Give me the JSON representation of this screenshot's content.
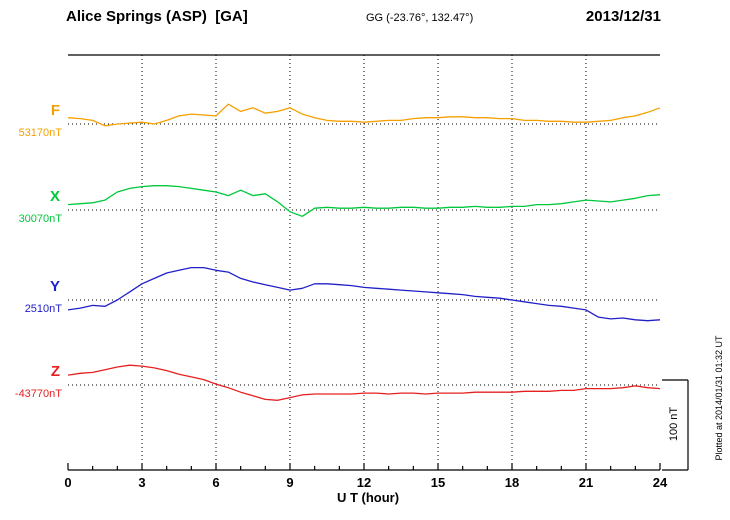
{
  "header": {
    "station": "Alice Springs (ASP)  [GA]",
    "coords": "GG (-23.76°, 132.47°)",
    "date": "2013/12/31"
  },
  "chart_data": {
    "type": "line",
    "title": "Alice Springs (ASP)  [GA]",
    "subtitle": "GG (-23.76°, 132.47°)",
    "date": "2013/12/31",
    "xlabel": "U T (hour)",
    "xlim": [
      0,
      24
    ],
    "xticks": [
      0,
      3,
      6,
      9,
      12,
      15,
      18,
      21,
      24
    ],
    "x_step_hours": 0.5,
    "grid": "dotted vertical at 3h intervals, dotted horizontal at each series baseline",
    "legend_position": "left margin, one colored label per trace",
    "scale_bar": {
      "label": "100 nT",
      "nT": 100
    },
    "plotted_at": "Plotted at 2014/01/31 01:32 UT",
    "series": [
      {
        "name": "F",
        "baseline_label": "53170nT",
        "baseline_nT": 53170,
        "color": "#F5A000",
        "unit": "nT",
        "values_offset_nT": [
          7,
          6,
          4,
          -2,
          0,
          1,
          2,
          0,
          4,
          9,
          11,
          10,
          9,
          22,
          14,
          18,
          12,
          14,
          18,
          11,
          7,
          4,
          3,
          3,
          2,
          3,
          4,
          4,
          6,
          7,
          7,
          8,
          8,
          7,
          7,
          6,
          6,
          4,
          4,
          3,
          3,
          2,
          2,
          3,
          4,
          7,
          9,
          13,
          18
        ]
      },
      {
        "name": "X",
        "baseline_label": "30070nT",
        "baseline_nT": 30070,
        "color": "#00C83C",
        "unit": "nT",
        "values_offset_nT": [
          6,
          7,
          8,
          11,
          20,
          24,
          26,
          27,
          27,
          26,
          24,
          22,
          20,
          16,
          22,
          16,
          18,
          9,
          -2,
          -7,
          2,
          3,
          2,
          2,
          3,
          2,
          2,
          3,
          3,
          2,
          2,
          3,
          3,
          4,
          3,
          3,
          4,
          4,
          6,
          6,
          7,
          9,
          11,
          10,
          9,
          11,
          13,
          16,
          17
        ]
      },
      {
        "name": "Y",
        "baseline_label": "2510nT",
        "baseline_nT": 2510,
        "color": "#2020C8",
        "unit": "nT",
        "values_offset_nT": [
          -11,
          -9,
          -6,
          -7,
          0,
          9,
          18,
          24,
          30,
          33,
          36,
          36,
          33,
          31,
          24,
          20,
          17,
          14,
          11,
          13,
          18,
          18,
          17,
          16,
          14,
          13,
          12,
          11,
          10,
          9,
          8,
          7,
          6,
          4,
          3,
          2,
          0,
          -2,
          -4,
          -6,
          -7,
          -9,
          -11,
          -19,
          -21,
          -20,
          -22,
          -23,
          -22
        ]
      },
      {
        "name": "Z",
        "baseline_label": "-43770nT",
        "baseline_nT": -43770,
        "color": "#E62020",
        "unit": "nT",
        "values_offset_nT": [
          11,
          13,
          14,
          17,
          20,
          22,
          21,
          19,
          16,
          12,
          9,
          6,
          1,
          -3,
          -8,
          -12,
          -16,
          -17,
          -14,
          -11,
          -10,
          -10,
          -10,
          -10,
          -9,
          -9,
          -10,
          -9,
          -9,
          -10,
          -9,
          -9,
          -9,
          -8,
          -8,
          -8,
          -8,
          -7,
          -7,
          -7,
          -6,
          -6,
          -4,
          -4,
          -4,
          -3,
          -1,
          -3,
          -4
        ]
      }
    ]
  }
}
